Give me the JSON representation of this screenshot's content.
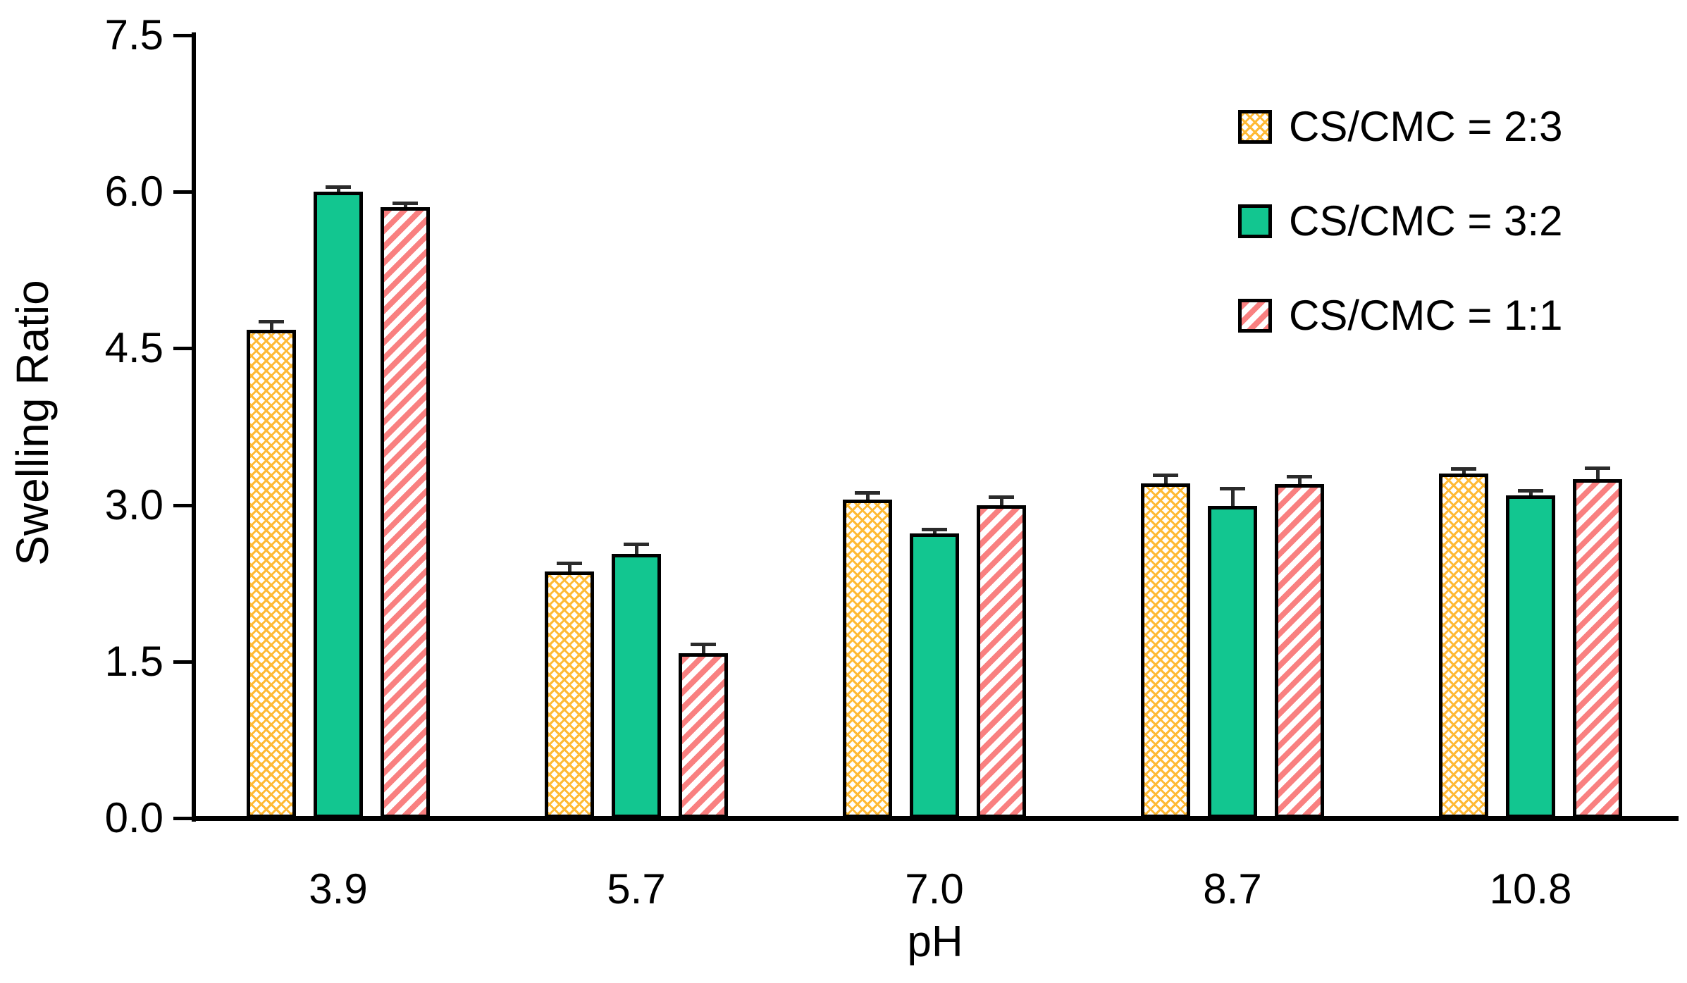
{
  "figure": {
    "background": "#FFFFFF",
    "description": "Grouped bar chart of swelling ratio versus pH for three CS/CMC hydrogel ratios, with error bars"
  },
  "chart_data": {
    "type": "bar",
    "title": "",
    "xlabel": "pH",
    "ylabel": "Swelling Ratio",
    "categories": [
      "3.9",
      "5.7",
      "7.0",
      "8.7",
      "10.8"
    ],
    "series": [
      {
        "name": "CS/CMC = 2:3",
        "style": "yellow-crosshatch",
        "color": "#FFBA35",
        "values": [
          4.68,
          2.36,
          3.05,
          3.21,
          3.3
        ],
        "errors": [
          0.07,
          0.08,
          0.06,
          0.07,
          0.04
        ]
      },
      {
        "name": "CS/CMC = 3:2",
        "style": "solid-green",
        "color": "#12C690",
        "values": [
          6.0,
          2.53,
          2.73,
          2.99,
          3.09
        ],
        "errors": [
          0.04,
          0.09,
          0.03,
          0.16,
          0.04
        ]
      },
      {
        "name": "CS/CMC = 1:1",
        "style": "red-diagonal-stripes",
        "color": "#F98080",
        "values": [
          5.85,
          1.58,
          3.0,
          3.2,
          3.25
        ],
        "errors": [
          0.04,
          0.08,
          0.07,
          0.07,
          0.1
        ]
      }
    ],
    "ylim": [
      0,
      7.5
    ],
    "yticks": [
      "0.0",
      "1.5",
      "3.0",
      "4.5",
      "6.0",
      "7.5"
    ],
    "grid": false,
    "legend_position": "upper-right",
    "axis_color": "#000000",
    "bar_outline_color": "#000000",
    "error_bar_color": "#2B2B2B"
  }
}
